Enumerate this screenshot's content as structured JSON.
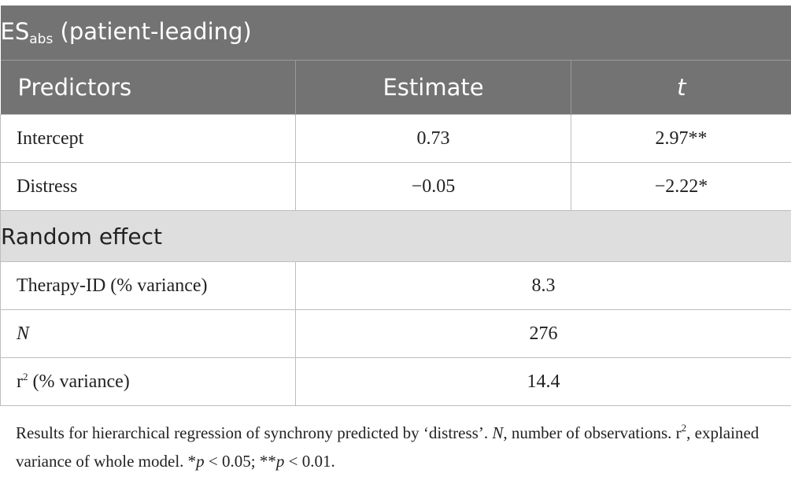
{
  "table": {
    "title_prefix": "ES",
    "title_subscript": "abs",
    "title_suffix": " (patient-leading)",
    "headers": {
      "predictors": "Predictors",
      "estimate": "Estimate",
      "t": "t"
    },
    "rows": [
      {
        "label": "Intercept",
        "estimate": "0.73",
        "t": "2.97**"
      },
      {
        "label": "Distress",
        "estimate": "−0.05",
        "t": "−2.22*"
      }
    ],
    "random_effect_heading": "Random effect",
    "random_rows": [
      {
        "label": "Therapy-ID (% variance)",
        "value": "8.3"
      },
      {
        "label": "N",
        "value": "276"
      },
      {
        "label_base": "r",
        "label_sup": "2",
        "label_rest": " (% variance)",
        "value": "14.4"
      }
    ]
  },
  "footnote": {
    "part1": "Results for hierarchical regression of synchrony predicted by ‘distress’. ",
    "n": "N",
    "part2": ", number of observations. ",
    "r": "r",
    "r_sup": "2",
    "part3": ", explained variance of whole model. *",
    "p1": "p",
    "part4": " < 0.05; **",
    "p2": "p",
    "part5": " < 0.01."
  }
}
